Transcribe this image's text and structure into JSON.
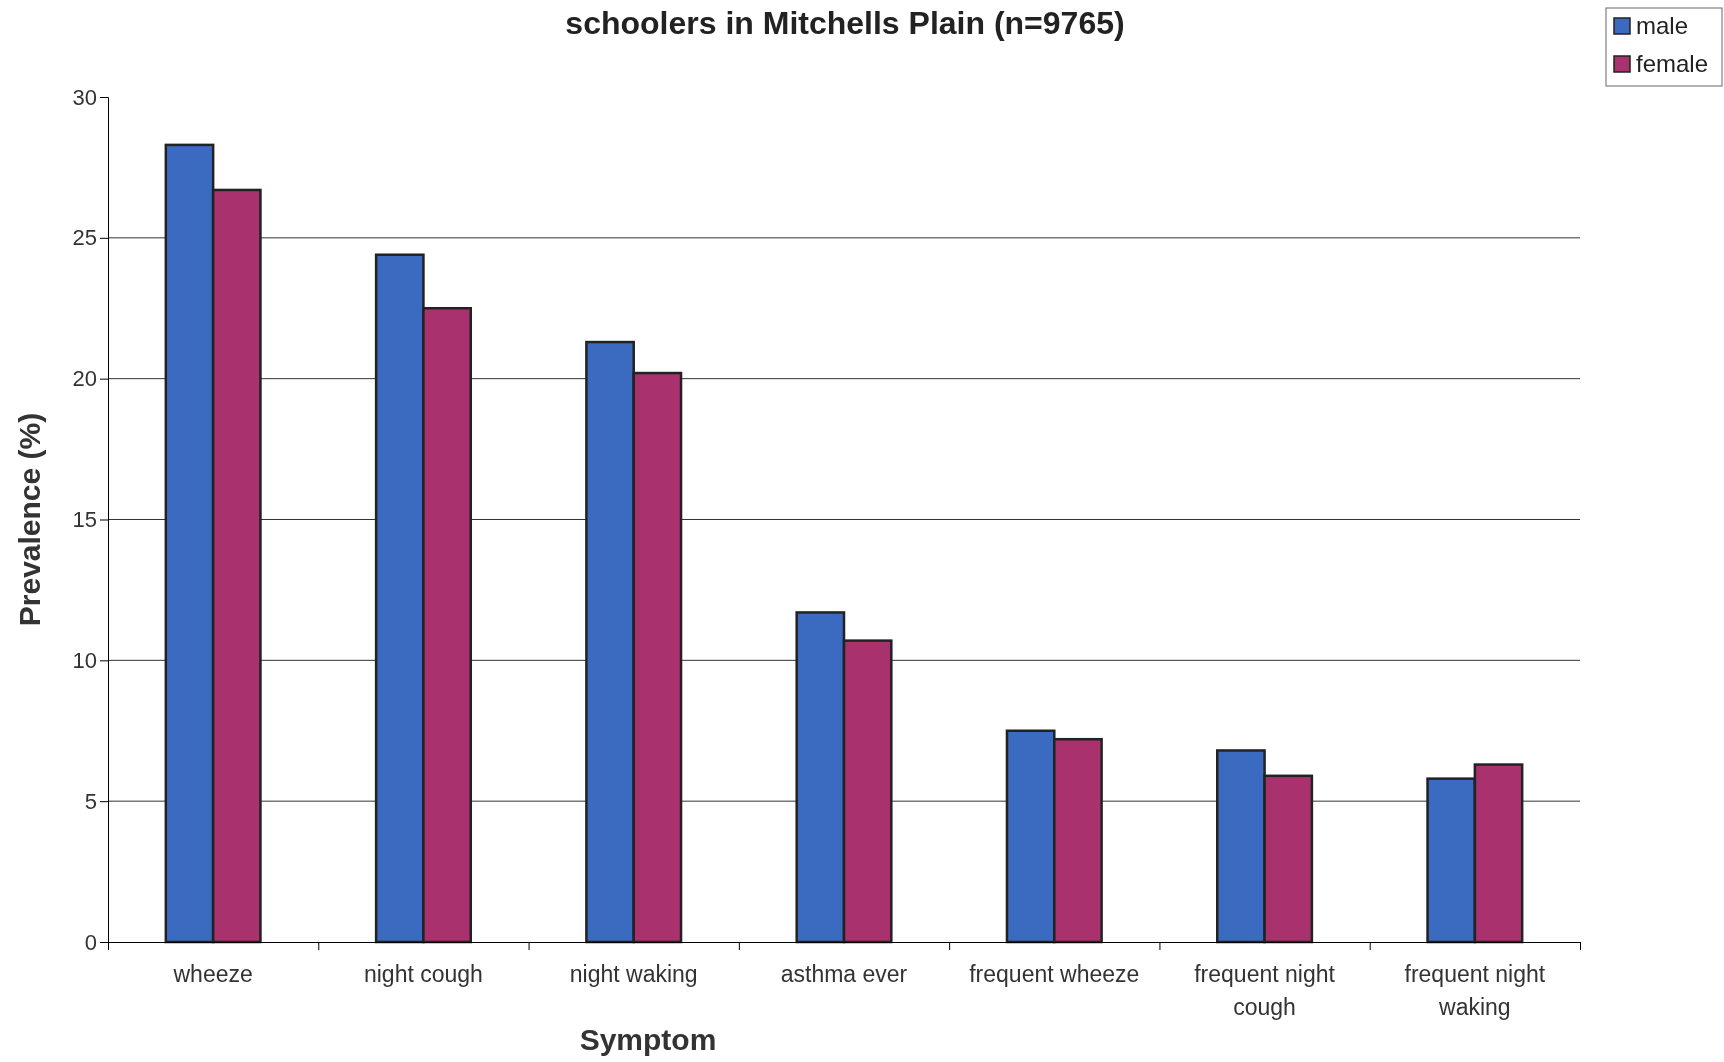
{
  "chart_data": {
    "type": "bar",
    "title": "schoolers in Mitchells Plain (n=9765)",
    "xlabel": "Symptom",
    "ylabel": "Prevalence (%)",
    "categories": [
      "wheeze",
      "night cough",
      "night waking",
      "asthma ever",
      "frequent wheeze",
      "frequent night cough",
      "frequent night waking"
    ],
    "series": [
      {
        "name": "male",
        "color": "#3a6bc0",
        "values": [
          28.3,
          24.4,
          21.3,
          11.7,
          7.5,
          6.8,
          5.8
        ]
      },
      {
        "name": "female",
        "color": "#a8316e",
        "values": [
          26.7,
          22.5,
          20.2,
          10.7,
          7.2,
          5.9,
          6.3
        ]
      }
    ],
    "ylim": [
      0,
      30
    ],
    "yticks": [
      0,
      5,
      10,
      15,
      20,
      25,
      30
    ],
    "grid": "y",
    "legend": "top right"
  }
}
